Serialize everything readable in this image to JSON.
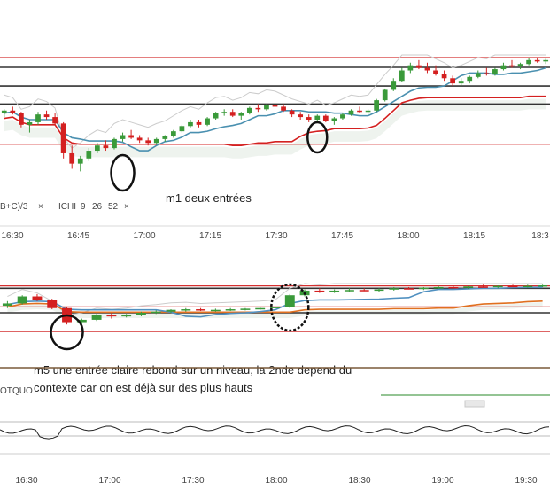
{
  "charts": [
    {
      "id": "m1",
      "indicator_labels": [
        "B+C)/3",
        "ICHI",
        "9",
        "26",
        "52"
      ],
      "close_icons": [
        "×",
        "×"
      ],
      "annotation": "m1 deux entrées",
      "x_ticks": [
        "16:30",
        "16:45",
        "17:00",
        "17:15",
        "17:30",
        "17:45",
        "18:00",
        "18:15",
        "18:3"
      ],
      "colors": {
        "up": "#3a9a3a",
        "down": "#d42020",
        "level": "#d43030",
        "kijun": "#d42020",
        "tenkan": "#4a90b0",
        "cloud": "#d8e4d8"
      }
    },
    {
      "id": "m5",
      "indicator_labels": [
        "OT",
        "QUO"
      ],
      "annotation_lines": [
        "m5 une entrée claire rebond sur un niveau, la 2nde depend du",
        "contexte car on est déjà sur des plus hauts"
      ],
      "x_ticks": [
        "16:30",
        "17:00",
        "17:30",
        "18:00",
        "18:30",
        "19:00",
        "19:30"
      ],
      "colors": {
        "up": "#3a9a3a",
        "down": "#d42020",
        "level": "#d43030",
        "kijun": "#e07020",
        "tenkan": "#5090c0"
      }
    }
  ],
  "chart_data": [
    {
      "type": "candlestick",
      "timeframe": "m1",
      "x_ticks": [
        "16:30",
        "16:45",
        "17:00",
        "17:15",
        "17:30",
        "17:45",
        "18:00",
        "18:15",
        "18:3"
      ],
      "y_range": [
        0,
        100
      ],
      "horizontal_levels": [
        98,
        76,
        62,
        31
      ],
      "series": [
        {
          "name": "candles",
          "ohlc_scale": "relative 0-100",
          "values": [
            [
              55,
              58,
              52,
              57
            ],
            [
              57,
              60,
              54,
              55
            ],
            [
              55,
              56,
              44,
              46
            ],
            [
              46,
              50,
              40,
              48
            ],
            [
              48,
              56,
              46,
              54
            ],
            [
              54,
              57,
              50,
              52
            ],
            [
              52,
              55,
              46,
              47
            ],
            [
              47,
              48,
              20,
              24
            ],
            [
              24,
              30,
              12,
              16
            ],
            [
              16,
              22,
              10,
              20
            ],
            [
              20,
              28,
              18,
              26
            ],
            [
              26,
              32,
              24,
              30
            ],
            [
              30,
              34,
              26,
              28
            ],
            [
              28,
              36,
              27,
              35
            ],
            [
              35,
              40,
              33,
              38
            ],
            [
              38,
              42,
              35,
              36
            ],
            [
              36,
              38,
              32,
              34
            ],
            [
              34,
              36,
              30,
              32
            ],
            [
              32,
              36,
              31,
              35
            ],
            [
              35,
              38,
              33,
              37
            ],
            [
              37,
              42,
              36,
              41
            ],
            [
              41,
              46,
              40,
              45
            ],
            [
              45,
              50,
              44,
              48
            ],
            [
              48,
              50,
              44,
              46
            ],
            [
              46,
              52,
              45,
              51
            ],
            [
              51,
              56,
              50,
              55
            ],
            [
              55,
              58,
              53,
              56
            ],
            [
              56,
              58,
              52,
              53
            ],
            [
              53,
              56,
              50,
              55
            ],
            [
              55,
              60,
              54,
              59
            ],
            [
              59,
              62,
              56,
              58
            ],
            [
              58,
              62,
              57,
              61
            ],
            [
              61,
              64,
              58,
              60
            ],
            [
              60,
              62,
              56,
              57
            ],
            [
              57,
              58,
              52,
              54
            ],
            [
              54,
              56,
              50,
              52
            ],
            [
              52,
              54,
              48,
              50
            ],
            [
              50,
              54,
              49,
              53
            ],
            [
              53,
              54,
              48,
              49
            ],
            [
              49,
              52,
              46,
              51
            ],
            [
              51,
              55,
              50,
              54
            ],
            [
              54,
              58,
              53,
              57
            ],
            [
              57,
              60,
              55,
              56
            ],
            [
              56,
              58,
              54,
              57
            ],
            [
              57,
              66,
              56,
              65
            ],
            [
              65,
              74,
              64,
              73
            ],
            [
              73,
              82,
              72,
              80
            ],
            [
              80,
              90,
              79,
              88
            ],
            [
              88,
              94,
              86,
              92
            ],
            [
              92,
              96,
              89,
              90
            ],
            [
              90,
              94,
              86,
              88
            ],
            [
              88,
              92,
              84,
              85
            ],
            [
              85,
              88,
              80,
              82
            ],
            [
              82,
              84,
              76,
              78
            ],
            [
              78,
              82,
              76,
              80
            ],
            [
              80,
              84,
              78,
              83
            ],
            [
              83,
              88,
              82,
              86
            ],
            [
              86,
              90,
              84,
              85
            ],
            [
              85,
              90,
              84,
              89
            ],
            [
              89,
              94,
              88,
              92
            ],
            [
              92,
              96,
              90,
              91
            ],
            [
              91,
              94,
              89,
              93
            ],
            [
              93,
              98,
              92,
              96
            ],
            [
              96,
              98,
              94,
              95
            ],
            [
              95,
              97,
              93,
              96
            ]
          ]
        }
      ]
    },
    {
      "type": "candlestick",
      "timeframe": "m5",
      "x_ticks": [
        "16:30",
        "17:00",
        "17:30",
        "18:00",
        "18:30",
        "19:00",
        "19:30"
      ],
      "y_range": [
        0,
        100
      ],
      "horizontal_levels": [
        96,
        92,
        60,
        50,
        18
      ],
      "series": [
        {
          "name": "candles",
          "ohlc_scale": "relative 0-100",
          "values": [
            [
              62,
              70,
              58,
              66
            ],
            [
              66,
              80,
              64,
              78
            ],
            [
              78,
              82,
              70,
              72
            ],
            [
              72,
              74,
              56,
              58
            ],
            [
              58,
              60,
              30,
              34
            ],
            [
              34,
              40,
              28,
              38
            ],
            [
              38,
              48,
              36,
              46
            ],
            [
              46,
              50,
              40,
              44
            ],
            [
              44,
              48,
              42,
              46
            ],
            [
              46,
              52,
              44,
              50
            ],
            [
              50,
              54,
              48,
              52
            ],
            [
              52,
              56,
              50,
              55
            ],
            [
              55,
              58,
              52,
              56
            ],
            [
              56,
              58,
              53,
              54
            ],
            [
              54,
              57,
              52,
              55
            ],
            [
              55,
              58,
              53,
              56
            ],
            [
              56,
              58,
              54,
              57
            ],
            [
              57,
              60,
              55,
              58
            ],
            [
              58,
              62,
              56,
              60
            ],
            [
              60,
              82,
              58,
              80
            ],
            [
              80,
              90,
              78,
              88
            ],
            [
              88,
              92,
              84,
              86
            ],
            [
              86,
              90,
              84,
              88
            ],
            [
              88,
              92,
              86,
              89
            ],
            [
              89,
              92,
              87,
              88
            ],
            [
              88,
              92,
              86,
              90
            ],
            [
              90,
              94,
              88,
              92
            ],
            [
              92,
              94,
              90,
              91
            ],
            [
              91,
              94,
              89,
              93
            ],
            [
              93,
              96,
              91,
              94
            ],
            [
              94,
              96,
              92,
              93
            ],
            [
              93,
              96,
              91,
              95
            ],
            [
              95,
              98,
              93,
              94
            ],
            [
              94,
              97,
              92,
              96
            ],
            [
              96,
              98,
              94,
              95
            ],
            [
              95,
              98,
              93,
              96
            ],
            [
              96,
              98,
              94,
              97
            ]
          ]
        }
      ]
    }
  ]
}
